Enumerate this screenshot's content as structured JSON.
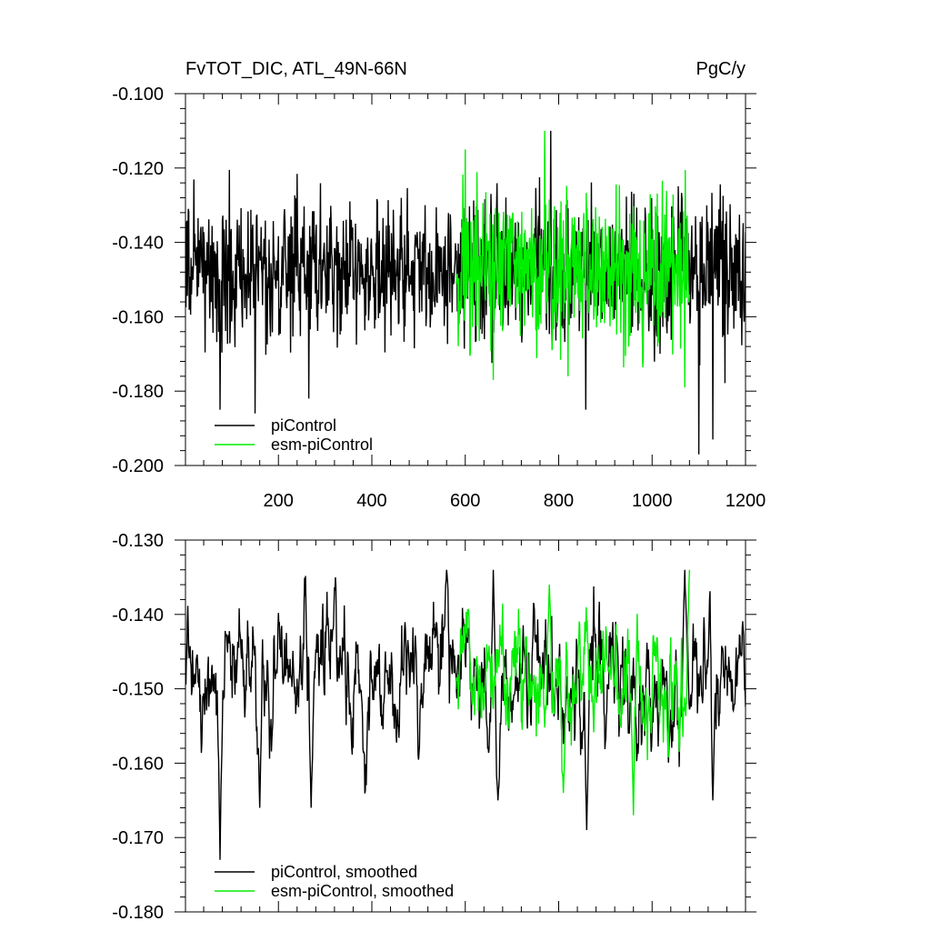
{
  "header": {
    "title_left": "FvTOT_DIC, ATL_49N-66N",
    "title_right": "PgC/y"
  },
  "colors": {
    "piControl": "#000000",
    "esm_piControl": "#00ee00"
  },
  "chart_data": [
    {
      "type": "line",
      "title": "FvTOT_DIC, ATL_49N-66N",
      "units": "PgC/y",
      "xlim": [
        1,
        1200
      ],
      "ylim": [
        -0.2,
        -0.1
      ],
      "x_ticks": [
        200,
        400,
        600,
        800,
        1000,
        1200
      ],
      "x_tick_labels": [
        "200",
        "400",
        "600",
        "800",
        "1000",
        "1200"
      ],
      "y_ticks": [
        -0.2,
        -0.18,
        -0.16,
        -0.14,
        -0.12,
        -0.1
      ],
      "y_tick_labels": [
        "-0.200",
        "-0.180",
        "-0.160",
        "-0.140",
        "-0.120",
        "-0.100"
      ],
      "legend_position": "bottom-left",
      "series": [
        {
          "name": "piControl",
          "color": "#000000",
          "x_range": [
            1,
            1200
          ],
          "mean": -0.148,
          "stdev": 0.0095,
          "extremes": [
            [
              75,
              -0.185
            ],
            [
              150,
              -0.186
            ],
            [
              265,
              -0.182
            ],
            [
              783,
              -0.11
            ],
            [
              858,
              -0.185
            ],
            [
              1100,
              -0.197
            ],
            [
              1130,
              -0.193
            ]
          ]
        },
        {
          "name": "esm-piControl",
          "color": "#00ee00",
          "x_range": [
            580,
            1080
          ],
          "mean": -0.147,
          "stdev": 0.011,
          "extremes": [
            [
              600,
              -0.115
            ],
            [
              660,
              -0.177
            ],
            [
              770,
              -0.11
            ],
            [
              820,
              -0.176
            ],
            [
              1070,
              -0.179
            ]
          ]
        }
      ]
    },
    {
      "type": "line",
      "xlim": [
        1,
        1200
      ],
      "ylim": [
        -0.18,
        -0.13
      ],
      "x_ticks": [
        200,
        400,
        600,
        800,
        1000,
        1200
      ],
      "y_ticks": [
        -0.18,
        -0.17,
        -0.16,
        -0.15,
        -0.14,
        -0.13
      ],
      "y_tick_labels": [
        "-0.180",
        "-0.170",
        "-0.160",
        "-0.150",
        "-0.140",
        "-0.130"
      ],
      "legend_position": "bottom-left",
      "series": [
        {
          "name": "piControl, smoothed",
          "color": "#000000",
          "x_range": [
            1,
            1200
          ],
          "mean": -0.148,
          "extremes": [
            [
              75,
              -0.173
            ],
            [
              160,
              -0.166
            ],
            [
              270,
              -0.166
            ],
            [
              560,
              -0.134
            ],
            [
              660,
              -0.134
            ],
            [
              670,
              -0.165
            ],
            [
              860,
              -0.169
            ],
            [
              1070,
              -0.134
            ],
            [
              1130,
              -0.165
            ]
          ]
        },
        {
          "name": "esm-piControl, smoothed",
          "color": "#00ee00",
          "x_range": [
            580,
            1080
          ],
          "mean": -0.148,
          "extremes": [
            [
              780,
              -0.136
            ],
            [
              810,
              -0.164
            ],
            [
              960,
              -0.167
            ],
            [
              1080,
              -0.134
            ]
          ]
        }
      ]
    }
  ]
}
